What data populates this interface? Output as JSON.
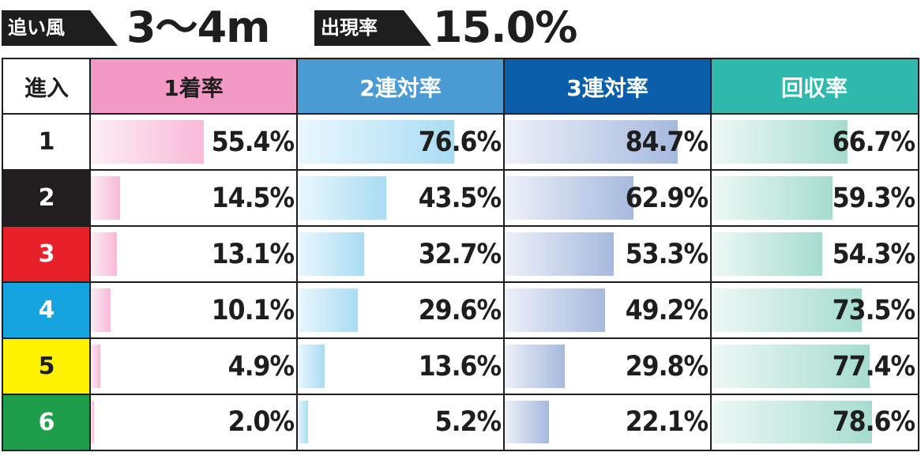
{
  "header": {
    "wind_label": "追い風",
    "wind_value": "3～4m",
    "rate_label": "出現率",
    "rate_value": "15.0%"
  },
  "table": {
    "lane_header": "進入",
    "columns": [
      {
        "label": "1着率",
        "header_color": "#f29ac5",
        "dark": false,
        "bar_from": "#fdeef5",
        "bar_to": "#f7b9d7"
      },
      {
        "label": "2連対率",
        "header_color": "#4a9ad3",
        "dark": true,
        "bar_from": "#eaf7fd",
        "bar_to": "#a9dcf3"
      },
      {
        "label": "3連対率",
        "header_color": "#0b5eaa",
        "dark": true,
        "bar_from": "#eef1f9",
        "bar_to": "#a6b9de"
      },
      {
        "label": "回収率",
        "header_color": "#2fb9ad",
        "dark": true,
        "bar_from": "#eef8f6",
        "bar_to": "#a6dccf"
      }
    ],
    "lanes": [
      {
        "label": "1",
        "bg": "#ffffff",
        "color": "#1e1e1e"
      },
      {
        "label": "2",
        "bg": "#231f20",
        "color": "#ffffff"
      },
      {
        "label": "3",
        "bg": "#e8202a",
        "color": "#ffffff"
      },
      {
        "label": "4",
        "bg": "#16a4e0",
        "color": "#ffffff"
      },
      {
        "label": "5",
        "bg": "#fff200",
        "color": "#1e1e1e"
      },
      {
        "label": "6",
        "bg": "#1e9e4a",
        "color": "#ffffff"
      }
    ],
    "rows": [
      [
        "55.4%",
        "76.6%",
        "84.7%",
        "66.7%"
      ],
      [
        "14.5%",
        "43.5%",
        "62.9%",
        "59.3%"
      ],
      [
        "13.1%",
        "32.7%",
        "53.3%",
        "54.3%"
      ],
      [
        "10.1%",
        "29.6%",
        "49.2%",
        "73.5%"
      ],
      [
        "4.9%",
        "13.6%",
        "29.8%",
        "77.4%"
      ],
      [
        "2.0%",
        "5.2%",
        "22.1%",
        "78.6%"
      ]
    ]
  },
  "chart_data": {
    "type": "table",
    "columns": [
      "1着率",
      "2連対率",
      "3連対率",
      "回収率"
    ],
    "categories": [
      "1",
      "2",
      "3",
      "4",
      "5",
      "6"
    ],
    "series": [
      {
        "name": "1着率",
        "values": [
          55.4,
          14.5,
          13.1,
          10.1,
          4.9,
          2.0
        ]
      },
      {
        "name": "2連対率",
        "values": [
          76.6,
          43.5,
          32.7,
          29.6,
          13.6,
          5.2
        ]
      },
      {
        "name": "3連対率",
        "values": [
          84.7,
          62.9,
          53.3,
          49.2,
          29.8,
          22.1
        ]
      },
      {
        "name": "回収率",
        "values": [
          66.7,
          59.3,
          54.3,
          73.5,
          77.4,
          78.6
        ]
      }
    ],
    "bar_scale_max": 100
  }
}
